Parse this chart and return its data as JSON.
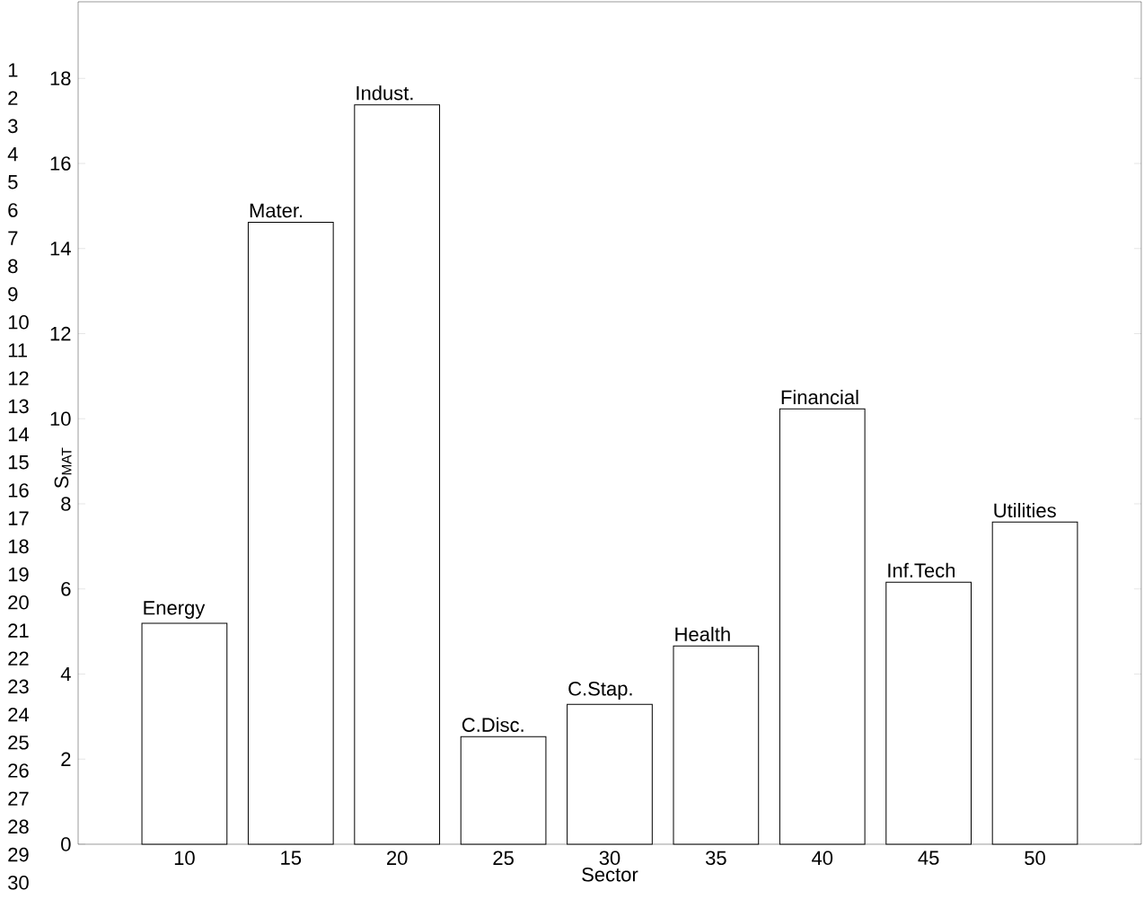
{
  "chart_data": {
    "type": "bar",
    "xlabel": "Sector",
    "ylabel": "S$_{MAT}$",
    "x": [
      10,
      15,
      20,
      25,
      30,
      35,
      40,
      45,
      50
    ],
    "values": [
      5.19,
      14.62,
      17.38,
      2.53,
      3.29,
      4.66,
      10.23,
      6.16,
      7.57
    ],
    "color": "#ffffff",
    "xlim": [
      5,
      55
    ],
    "xticks": [
      10,
      15,
      20,
      25,
      30,
      35,
      40,
      45,
      50
    ],
    "ylim": [
      0,
      19.8
    ],
    "yticks": [
      0,
      2,
      4,
      6,
      8,
      10,
      12,
      14,
      16,
      18
    ],
    "grid": false,
    "annotations": [
      {
        "text": "Energy",
        "x": 10,
        "y": 5.19
      },
      {
        "text": "Mater.",
        "x": 15,
        "y": 14.62
      },
      {
        "text": "Indust.",
        "x": 20,
        "y": 17.38
      },
      {
        "text": "C.Disc.",
        "x": 25,
        "y": 2.53
      },
      {
        "text": "C.Stap.",
        "x": 30,
        "y": 3.29
      },
      {
        "text": "Health",
        "x": 35,
        "y": 4.66
      },
      {
        "text": "Financial",
        "x": 40,
        "y": 10.23
      },
      {
        "text": "Inf.Tech",
        "x": 45,
        "y": 6.16
      },
      {
        "text": "Utilities",
        "x": 50,
        "y": 7.57
      },
      "1",
      "2",
      "3",
      "4",
      "5",
      "6",
      "7",
      "8",
      "9",
      "10",
      "11",
      "12",
      "13",
      "14",
      "15",
      "16",
      "17",
      "18",
      "19",
      "20",
      "21",
      "22",
      "23",
      "24",
      "25",
      "26",
      "27",
      "28",
      "29",
      "30"
    ]
  }
}
